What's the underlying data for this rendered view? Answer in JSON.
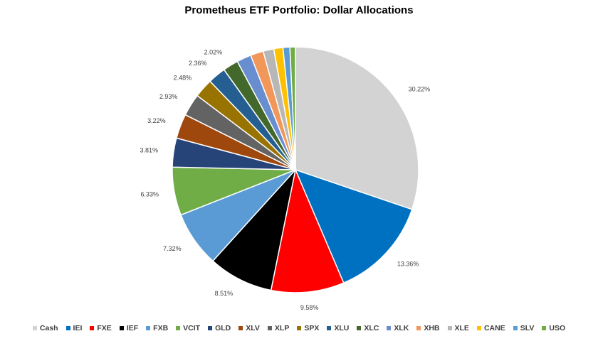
{
  "chart_data": {
    "type": "pie",
    "title": "Prometheus ETF Portfolio: Dollar Allocations",
    "categories": [
      "Cash",
      "IEI",
      "FXE",
      "IEF",
      "FXB",
      "VCIT",
      "GLD",
      "XLV",
      "XLP",
      "SPX",
      "XLU",
      "XLC",
      "XLK",
      "XHB",
      "XLE",
      "CANE",
      "SLV",
      "USO"
    ],
    "values": [
      30.22,
      13.36,
      9.58,
      8.51,
      7.32,
      6.33,
      3.81,
      3.22,
      2.93,
      2.48,
      2.36,
      2.02,
      1.9,
      1.7,
      1.4,
      1.2,
      0.9,
      0.72
    ],
    "data_labels": [
      "30.22%",
      "13.36%",
      "9.58%",
      "8.51%",
      "7.32%",
      "6.33%",
      "3.81%",
      "3.22%",
      "2.93%",
      "2.48%",
      "2.36%",
      "2.02%",
      "",
      "",
      "",
      "",
      "",
      ""
    ],
    "colors": [
      "#d3d3d3",
      "#0070c0",
      "#ff0000",
      "#000000",
      "#5b9bd5",
      "#70ad47",
      "#264478",
      "#9e480e",
      "#636363",
      "#997300",
      "#255e91",
      "#43682b",
      "#698ed0",
      "#f1975a",
      "#b7b7b7",
      "#ffc000",
      "#5b9bd5",
      "#70ad47"
    ],
    "legend_position": "bottom",
    "start_angle_deg": 0,
    "direction": "clockwise"
  }
}
